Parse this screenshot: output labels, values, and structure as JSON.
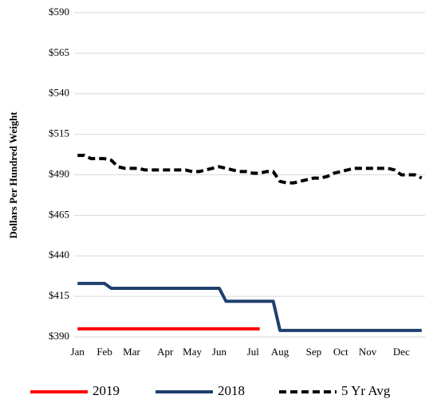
{
  "chart_data": {
    "type": "line",
    "y_label": "Dollars Per Hundred Weight",
    "categories": [
      "Jan",
      null,
      null,
      null,
      "Feb",
      null,
      null,
      null,
      "Mar",
      null,
      null,
      null,
      null,
      "Apr",
      null,
      null,
      null,
      "May",
      null,
      null,
      null,
      "Jun",
      null,
      null,
      null,
      null,
      "Jul",
      null,
      null,
      null,
      "Aug",
      null,
      null,
      null,
      null,
      "Sep",
      null,
      null,
      null,
      "Oct",
      null,
      null,
      null,
      "Nov",
      null,
      null,
      null,
      null,
      "Dec",
      null,
      null,
      null
    ],
    "series": [
      {
        "name": "2019",
        "color": "#ff0000",
        "dash": false,
        "values": [
          395,
          395,
          395,
          395,
          395,
          395,
          395,
          395,
          395,
          395,
          395,
          395,
          395,
          395,
          395,
          395,
          395,
          395,
          395,
          395,
          395,
          395,
          395,
          395,
          395,
          395,
          395,
          395,
          null,
          null,
          null,
          null,
          null,
          null,
          null,
          null,
          null,
          null,
          null,
          null,
          null,
          null,
          null,
          null,
          null,
          null,
          null,
          null,
          null,
          null,
          null,
          null
        ]
      },
      {
        "name": "2018",
        "color": "#1f3f6e",
        "dash": false,
        "values": [
          423,
          423,
          423,
          423,
          423,
          420,
          420,
          420,
          420,
          420,
          420,
          420,
          420,
          420,
          420,
          420,
          420,
          420,
          420,
          420,
          420,
          420,
          412,
          412,
          412,
          412,
          412,
          412,
          412,
          412,
          394,
          394,
          394,
          394,
          394,
          394,
          394,
          394,
          394,
          394,
          394,
          394,
          394,
          394,
          394,
          394,
          394,
          394,
          394,
          394,
          394,
          394
        ]
      },
      {
        "name": "5 Yr Avg",
        "color": "#000000",
        "dash": true,
        "values": [
          502,
          502,
          500,
          500,
          500,
          499,
          495,
          494,
          494,
          494,
          493,
          493,
          493,
          493,
          493,
          493,
          493,
          492,
          492,
          493,
          494,
          495,
          494,
          493,
          492,
          492,
          491,
          491,
          492,
          492,
          486,
          485,
          485,
          486,
          487,
          488,
          488,
          489,
          491,
          492,
          493,
          494,
          494,
          494,
          494,
          494,
          494,
          493,
          490,
          490,
          490,
          488
        ]
      }
    ],
    "ylim": [
      390,
      590
    ],
    "yticks": [
      {
        "value": 390,
        "label": "$390"
      },
      {
        "value": 415,
        "label": "$415"
      },
      {
        "value": 440,
        "label": "$440"
      },
      {
        "value": 465,
        "label": "$465"
      },
      {
        "value": 490,
        "label": "$490"
      },
      {
        "value": 515,
        "label": "$515"
      },
      {
        "value": 540,
        "label": "$540"
      },
      {
        "value": 565,
        "label": "$565"
      },
      {
        "value": 590,
        "label": "$590"
      }
    ],
    "grid": true,
    "legend": "bottom"
  }
}
